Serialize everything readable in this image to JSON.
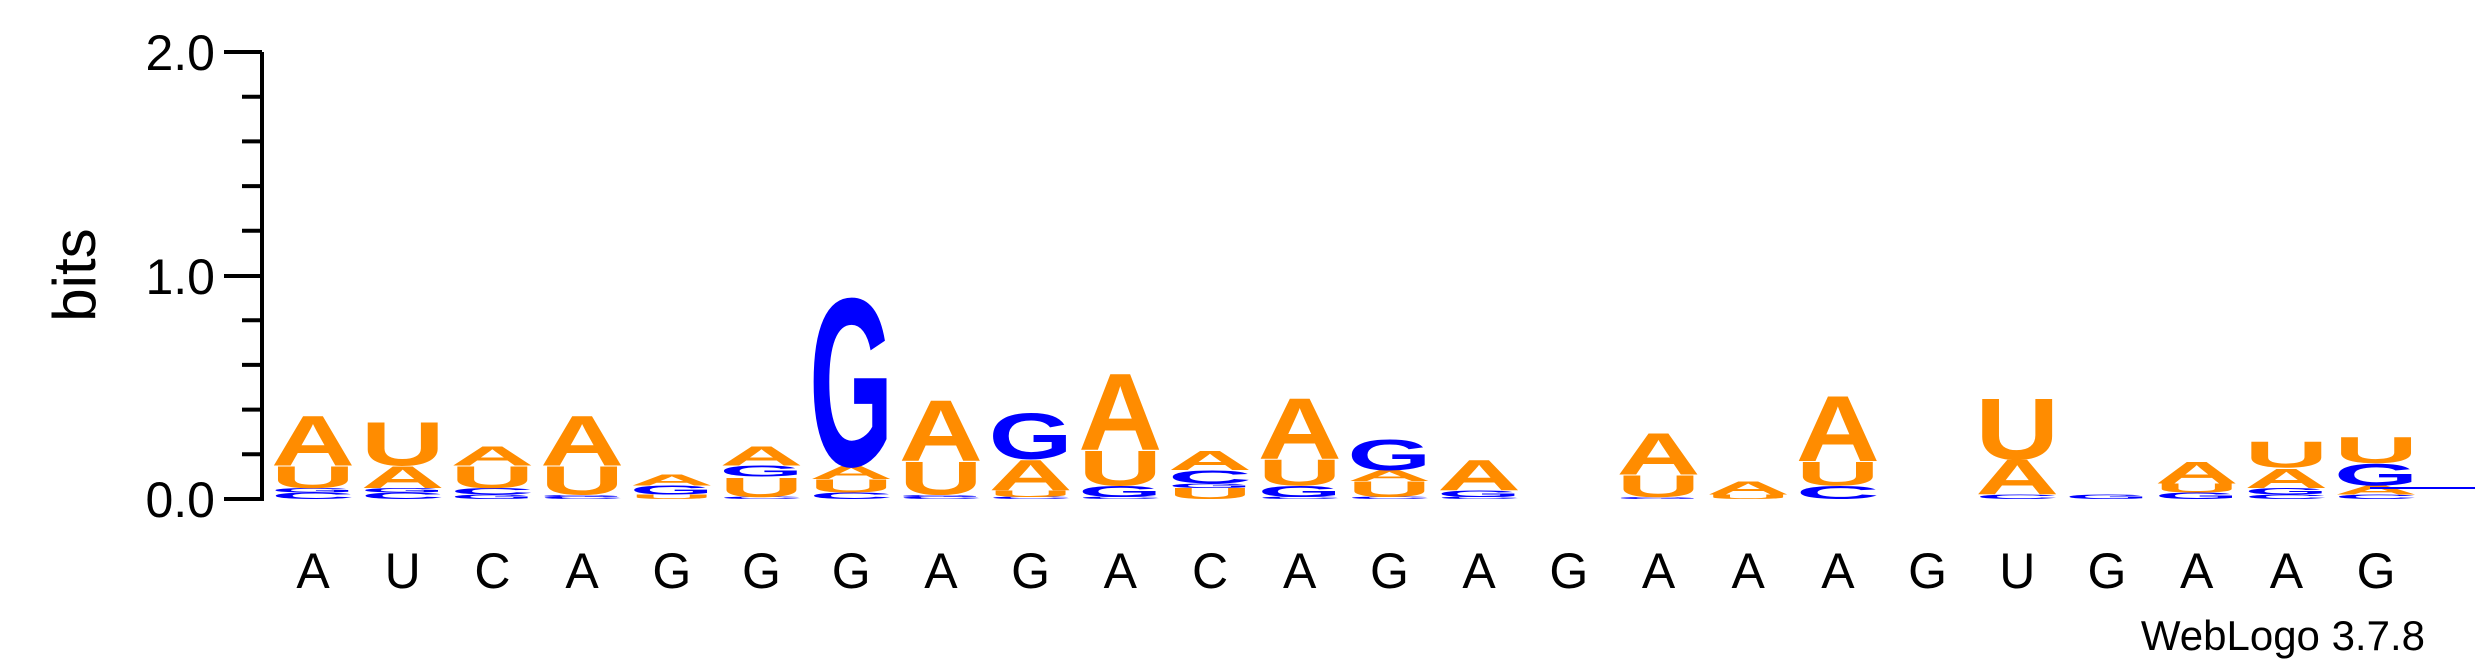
{
  "chart_data": {
    "type": "sequence-logo",
    "ylabel": "bits",
    "ylim": [
      0,
      2
    ],
    "yticks": [
      "0.0",
      "1.0",
      "2.0"
    ],
    "colors": {
      "A": "#FF8C00",
      "U": "#FF8C00",
      "G": "#0000FF",
      "C": "#0000FF"
    },
    "positions": [
      {
        "label": "A",
        "stack": [
          {
            "letter": "C",
            "bits": 0.03
          },
          {
            "letter": "G",
            "bits": 0.02
          },
          {
            "letter": "U",
            "bits": 0.1
          },
          {
            "letter": "A",
            "bits": 0.23
          }
        ]
      },
      {
        "label": "U",
        "stack": [
          {
            "letter": "C",
            "bits": 0.03
          },
          {
            "letter": "G",
            "bits": 0.02
          },
          {
            "letter": "A",
            "bits": 0.1
          },
          {
            "letter": "U",
            "bits": 0.2
          }
        ]
      },
      {
        "label": "C",
        "stack": [
          {
            "letter": "G",
            "bits": 0.02
          },
          {
            "letter": "C",
            "bits": 0.03
          },
          {
            "letter": "U",
            "bits": 0.1
          },
          {
            "letter": "A",
            "bits": 0.09
          }
        ]
      },
      {
        "label": "A",
        "stack": [
          {
            "letter": "C",
            "bits": 0.01
          },
          {
            "letter": "G",
            "bits": 0.01
          },
          {
            "letter": "U",
            "bits": 0.13
          },
          {
            "letter": "A",
            "bits": 0.23
          }
        ]
      },
      {
        "label": "G",
        "stack": [
          {
            "letter": "U",
            "bits": 0.02
          },
          {
            "letter": "G",
            "bits": 0.04
          },
          {
            "letter": "A",
            "bits": 0.05
          }
        ]
      },
      {
        "label": "G",
        "stack": [
          {
            "letter": "C",
            "bits": 0.01
          },
          {
            "letter": "U",
            "bits": 0.09
          },
          {
            "letter": "G",
            "bits": 0.05
          },
          {
            "letter": "A",
            "bits": 0.09
          }
        ]
      },
      {
        "label": "G",
        "stack": [
          {
            "letter": "C",
            "bits": 0.03
          },
          {
            "letter": "U",
            "bits": 0.06
          },
          {
            "letter": "A",
            "bits": 0.06
          },
          {
            "letter": "G",
            "bits": 0.77
          }
        ]
      },
      {
        "label": "A",
        "stack": [
          {
            "letter": "C",
            "bits": 0.01
          },
          {
            "letter": "G",
            "bits": 0.01
          },
          {
            "letter": "U",
            "bits": 0.15
          },
          {
            "letter": "A",
            "bits": 0.28
          }
        ]
      },
      {
        "label": "G",
        "stack": [
          {
            "letter": "C",
            "bits": 0.01
          },
          {
            "letter": "U",
            "bits": 0.03
          },
          {
            "letter": "A",
            "bits": 0.14
          },
          {
            "letter": "G",
            "bits": 0.21
          }
        ]
      },
      {
        "label": "A",
        "stack": [
          {
            "letter": "C",
            "bits": 0.01
          },
          {
            "letter": "G",
            "bits": 0.05
          },
          {
            "letter": "U",
            "bits": 0.16
          },
          {
            "letter": "A",
            "bits": 0.35
          }
        ]
      },
      {
        "label": "C",
        "stack": [
          {
            "letter": "U",
            "bits": 0.05
          },
          {
            "letter": "G",
            "bits": 0.02
          },
          {
            "letter": "C",
            "bits": 0.06
          },
          {
            "letter": "A",
            "bits": 0.09
          }
        ]
      },
      {
        "label": "A",
        "stack": [
          {
            "letter": "C",
            "bits": 0.01
          },
          {
            "letter": "G",
            "bits": 0.05
          },
          {
            "letter": "U",
            "bits": 0.12
          },
          {
            "letter": "A",
            "bits": 0.28
          }
        ]
      },
      {
        "label": "G",
        "stack": [
          {
            "letter": "C",
            "bits": 0.01
          },
          {
            "letter": "U",
            "bits": 0.07
          },
          {
            "letter": "A",
            "bits": 0.05
          },
          {
            "letter": "G",
            "bits": 0.14
          }
        ]
      },
      {
        "label": "A",
        "stack": [
          {
            "letter": "C",
            "bits": 0.01
          },
          {
            "letter": "G",
            "bits": 0.03
          },
          {
            "letter": "A",
            "bits": 0.14
          }
        ]
      },
      {
        "label": "G",
        "stack": []
      },
      {
        "label": "A",
        "stack": [
          {
            "letter": "G",
            "bits": 0.01
          },
          {
            "letter": "U",
            "bits": 0.1
          },
          {
            "letter": "A",
            "bits": 0.19
          }
        ]
      },
      {
        "label": "A",
        "stack": [
          {
            "letter": "U",
            "bits": 0.02
          },
          {
            "letter": "A",
            "bits": 0.06
          }
        ]
      },
      {
        "label": "A",
        "stack": [
          {
            "letter": "C",
            "bits": 0.06
          },
          {
            "letter": "U",
            "bits": 0.11
          },
          {
            "letter": "A",
            "bits": 0.3
          }
        ]
      },
      {
        "label": "G",
        "stack": []
      },
      {
        "label": "U",
        "stack": [
          {
            "letter": "C",
            "bits": 0.02
          },
          {
            "letter": "A",
            "bits": 0.16
          },
          {
            "letter": "U",
            "bits": 0.28
          }
        ]
      },
      {
        "label": "G",
        "stack": [
          {
            "letter": "G",
            "bits": 0.02
          }
        ]
      },
      {
        "label": "A",
        "stack": [
          {
            "letter": "G",
            "bits": 0.03
          },
          {
            "letter": "U",
            "bits": 0.04
          },
          {
            "letter": "A",
            "bits": 0.1
          }
        ]
      },
      {
        "label": "A",
        "stack": [
          {
            "letter": "C",
            "bits": 0.02
          },
          {
            "letter": "G",
            "bits": 0.03
          },
          {
            "letter": "A",
            "bits": 0.09
          },
          {
            "letter": "U",
            "bits": 0.12
          }
        ]
      },
      {
        "label": "G",
        "stack": [
          {
            "letter": "C",
            "bits": 0.02
          },
          {
            "letter": "A",
            "bits": 0.04
          },
          {
            "letter": "G",
            "bits": 0.1
          },
          {
            "letter": "U",
            "bits": 0.12
          }
        ]
      }
    ]
  },
  "footer": {
    "brand": "WebLogo 3.7.8"
  }
}
